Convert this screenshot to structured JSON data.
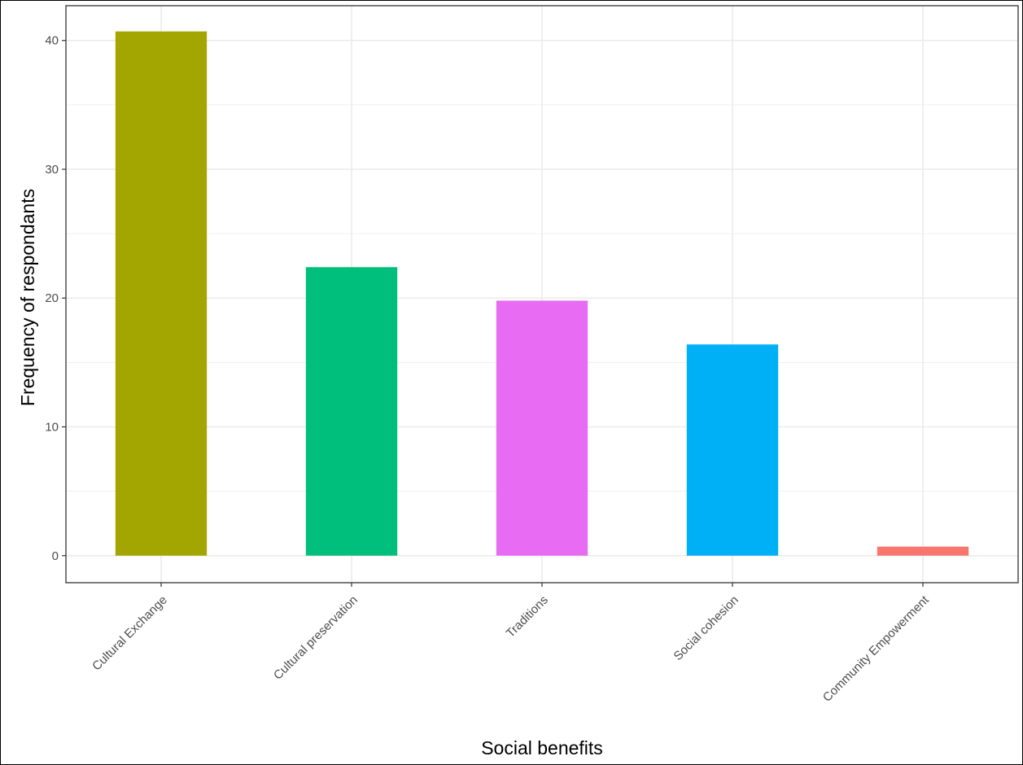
{
  "chart_data": {
    "type": "bar",
    "title": "",
    "xlabel": "Social benefits",
    "ylabel": "Frequency of respondants",
    "categories": [
      "Cultural Exchange",
      "Cultural preservation",
      "Traditions",
      "Social cohesion",
      "Community Empowerment"
    ],
    "values": [
      40.7,
      22.4,
      19.8,
      16.4,
      0.7
    ],
    "colors": [
      "#A3A500",
      "#00BF7D",
      "#E76BF3",
      "#00B0F6",
      "#F8766D"
    ],
    "ylim": [
      -2.1,
      42.7
    ],
    "yticks": [
      0,
      10,
      20,
      30,
      40
    ],
    "ytick_labels": [
      "0",
      "10",
      "20",
      "30",
      "40"
    ],
    "grid": true,
    "legend": "none",
    "panel_background": "#ffffff",
    "grid_color": "#ebebeb"
  }
}
